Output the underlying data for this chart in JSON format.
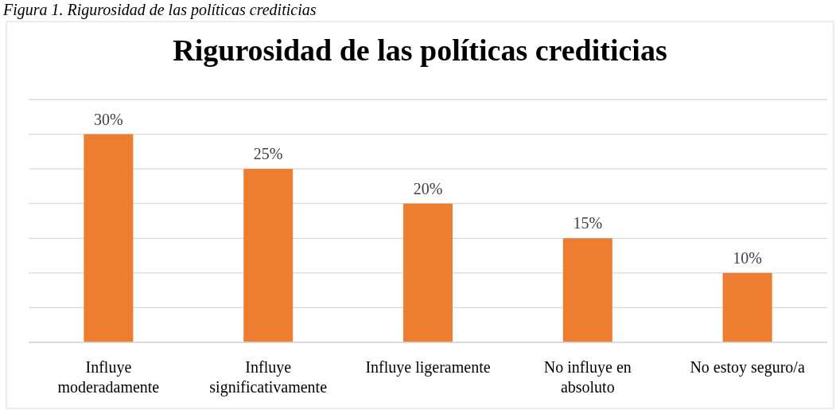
{
  "chart_data": {
    "type": "bar",
    "title": "Rigurosidad de las políticas crediticias",
    "annotations": [
      "Figura 1. Rigurosidad de las políticas crediticias"
    ],
    "categories": [
      "Influye moderadamente",
      "Influye significativamente",
      "Influye ligeramente",
      "No influye en absoluto",
      "No estoy seguro/a"
    ],
    "values": [
      30,
      25,
      20,
      15,
      10
    ],
    "value_labels": [
      "30%",
      "25%",
      "20%",
      "15%",
      "10%"
    ],
    "color": "#ed7d31",
    "ylim": [
      0,
      35
    ],
    "yticks": [
      {
        "value": 0,
        "label": null
      },
      {
        "value": 5,
        "label": null
      },
      {
        "value": 10,
        "label": null
      },
      {
        "value": 15,
        "label": null
      },
      {
        "value": 20,
        "label": null
      },
      {
        "value": 25,
        "label": null
      },
      {
        "value": 30,
        "label": null
      },
      {
        "value": 35,
        "label": null
      }
    ],
    "grid": "y",
    "tick_labels": "x"
  }
}
